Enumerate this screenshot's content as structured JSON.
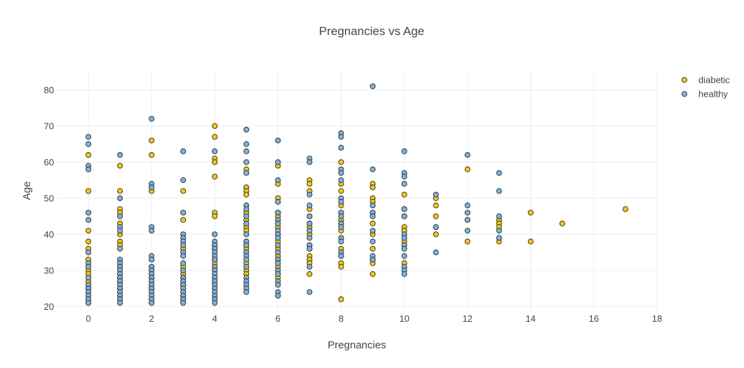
{
  "chart_data": {
    "type": "scatter",
    "title": "Pregnancies vs Age",
    "xlabel": "Pregnancies",
    "ylabel": "Age",
    "xlim": [
      -1,
      18
    ],
    "ylim": [
      18.5,
      85.5
    ],
    "xticks": [
      0,
      2,
      4,
      6,
      8,
      10,
      12,
      14,
      16,
      18
    ],
    "yticks": [
      20,
      30,
      40,
      50,
      60,
      70,
      80
    ],
    "grid": true,
    "legend_position": "top-right",
    "series": [
      {
        "name": "diabetic",
        "color": "#f2c811",
        "points": [
          [
            0,
            62
          ],
          [
            0,
            52
          ],
          [
            0,
            41
          ],
          [
            0,
            38
          ],
          [
            0,
            36
          ],
          [
            0,
            33
          ],
          [
            0,
            30
          ],
          [
            0,
            29
          ],
          [
            0,
            27
          ],
          [
            0,
            25
          ],
          [
            0,
            24
          ],
          [
            0,
            22
          ],
          [
            0,
            21
          ],
          [
            1,
            59
          ],
          [
            1,
            52
          ],
          [
            1,
            47
          ],
          [
            1,
            46
          ],
          [
            1,
            43
          ],
          [
            1,
            40
          ],
          [
            1,
            38
          ],
          [
            1,
            37
          ],
          [
            1,
            31
          ],
          [
            1,
            28
          ],
          [
            1,
            27
          ],
          [
            1,
            25
          ],
          [
            1,
            22
          ],
          [
            1,
            21
          ],
          [
            2,
            66
          ],
          [
            2,
            62
          ],
          [
            2,
            52
          ],
          [
            2,
            31
          ],
          [
            2,
            28
          ],
          [
            2,
            25
          ],
          [
            2,
            22
          ],
          [
            2,
            21
          ],
          [
            3,
            52
          ],
          [
            3,
            44
          ],
          [
            3,
            36
          ],
          [
            3,
            31
          ],
          [
            3,
            29
          ],
          [
            3,
            28
          ],
          [
            3,
            27
          ],
          [
            3,
            26
          ],
          [
            3,
            25
          ],
          [
            3,
            23
          ],
          [
            3,
            22
          ],
          [
            3,
            21
          ],
          [
            4,
            70
          ],
          [
            4,
            67
          ],
          [
            4,
            61
          ],
          [
            4,
            60
          ],
          [
            4,
            56
          ],
          [
            4,
            46
          ],
          [
            4,
            45
          ],
          [
            4,
            37
          ],
          [
            4,
            36
          ],
          [
            4,
            33
          ],
          [
            4,
            32
          ],
          [
            4,
            31
          ],
          [
            4,
            30
          ],
          [
            4,
            28
          ],
          [
            4,
            27
          ],
          [
            4,
            25
          ],
          [
            4,
            22
          ],
          [
            5,
            58
          ],
          [
            5,
            53
          ],
          [
            5,
            52
          ],
          [
            5,
            51
          ],
          [
            5,
            46
          ],
          [
            5,
            44
          ],
          [
            5,
            42
          ],
          [
            5,
            41
          ],
          [
            5,
            38
          ],
          [
            5,
            37
          ],
          [
            5,
            36
          ],
          [
            5,
            32
          ],
          [
            5,
            30
          ],
          [
            5,
            29
          ],
          [
            6,
            59
          ],
          [
            6,
            54
          ],
          [
            6,
            50
          ],
          [
            6,
            46
          ],
          [
            6,
            45
          ],
          [
            6,
            42
          ],
          [
            6,
            40
          ],
          [
            6,
            38
          ],
          [
            6,
            36
          ],
          [
            6,
            34
          ],
          [
            6,
            31
          ],
          [
            6,
            29
          ],
          [
            6,
            28
          ],
          [
            7,
            55
          ],
          [
            7,
            54
          ],
          [
            7,
            52
          ],
          [
            7,
            47
          ],
          [
            7,
            45
          ],
          [
            7,
            43
          ],
          [
            7,
            42
          ],
          [
            7,
            40
          ],
          [
            7,
            37
          ],
          [
            7,
            36
          ],
          [
            7,
            34
          ],
          [
            7,
            33
          ],
          [
            7,
            32
          ],
          [
            7,
            29
          ],
          [
            8,
            60
          ],
          [
            8,
            54
          ],
          [
            8,
            52
          ],
          [
            8,
            48
          ],
          [
            8,
            46
          ],
          [
            8,
            44
          ],
          [
            8,
            43
          ],
          [
            8,
            41
          ],
          [
            8,
            39
          ],
          [
            8,
            36
          ],
          [
            8,
            34
          ],
          [
            8,
            32
          ],
          [
            8,
            31
          ],
          [
            8,
            22
          ],
          [
            9,
            54
          ],
          [
            9,
            53
          ],
          [
            9,
            50
          ],
          [
            9,
            49
          ],
          [
            9,
            46
          ],
          [
            9,
            43
          ],
          [
            9,
            40
          ],
          [
            9,
            36
          ],
          [
            9,
            33
          ],
          [
            9,
            32
          ],
          [
            9,
            29
          ],
          [
            10,
            51
          ],
          [
            10,
            47
          ],
          [
            10,
            45
          ],
          [
            10,
            42
          ],
          [
            10,
            41
          ],
          [
            10,
            38
          ],
          [
            10,
            32
          ],
          [
            11,
            50
          ],
          [
            11,
            48
          ],
          [
            11,
            45
          ],
          [
            11,
            42
          ],
          [
            11,
            40
          ],
          [
            12,
            58
          ],
          [
            12,
            44
          ],
          [
            12,
            38
          ],
          [
            13,
            44
          ],
          [
            13,
            43
          ],
          [
            13,
            42
          ],
          [
            13,
            38
          ],
          [
            14,
            46
          ],
          [
            14,
            38
          ],
          [
            15,
            43
          ],
          [
            17,
            47
          ]
        ]
      },
      {
        "name": "healthy",
        "color": "#7fb2d8",
        "points": [
          [
            0,
            67
          ],
          [
            0,
            65
          ],
          [
            0,
            59
          ],
          [
            0,
            58
          ],
          [
            0,
            46
          ],
          [
            0,
            44
          ],
          [
            0,
            35
          ],
          [
            0,
            32
          ],
          [
            0,
            31
          ],
          [
            0,
            28
          ],
          [
            0,
            26
          ],
          [
            0,
            25
          ],
          [
            0,
            24
          ],
          [
            0,
            23
          ],
          [
            0,
            22
          ],
          [
            0,
            21
          ],
          [
            1,
            62
          ],
          [
            1,
            50
          ],
          [
            1,
            45
          ],
          [
            1,
            42
          ],
          [
            1,
            41
          ],
          [
            1,
            36
          ],
          [
            1,
            33
          ],
          [
            1,
            32
          ],
          [
            1,
            31
          ],
          [
            1,
            30
          ],
          [
            1,
            29
          ],
          [
            1,
            28
          ],
          [
            1,
            27
          ],
          [
            1,
            26
          ],
          [
            1,
            25
          ],
          [
            1,
            24
          ],
          [
            1,
            23
          ],
          [
            1,
            22
          ],
          [
            1,
            21
          ],
          [
            2,
            72
          ],
          [
            2,
            54
          ],
          [
            2,
            53
          ],
          [
            2,
            42
          ],
          [
            2,
            41
          ],
          [
            2,
            34
          ],
          [
            2,
            33
          ],
          [
            2,
            31
          ],
          [
            2,
            30
          ],
          [
            2,
            29
          ],
          [
            2,
            28
          ],
          [
            2,
            27
          ],
          [
            2,
            26
          ],
          [
            2,
            25
          ],
          [
            2,
            24
          ],
          [
            2,
            23
          ],
          [
            2,
            22
          ],
          [
            2,
            21
          ],
          [
            3,
            63
          ],
          [
            3,
            55
          ],
          [
            3,
            46
          ],
          [
            3,
            40
          ],
          [
            3,
            39
          ],
          [
            3,
            38
          ],
          [
            3,
            37
          ],
          [
            3,
            35
          ],
          [
            3,
            34
          ],
          [
            3,
            32
          ],
          [
            3,
            30
          ],
          [
            3,
            28
          ],
          [
            3,
            27
          ],
          [
            3,
            26
          ],
          [
            3,
            25
          ],
          [
            3,
            24
          ],
          [
            3,
            23
          ],
          [
            3,
            22
          ],
          [
            3,
            21
          ],
          [
            4,
            63
          ],
          [
            4,
            40
          ],
          [
            4,
            38
          ],
          [
            4,
            37
          ],
          [
            4,
            36
          ],
          [
            4,
            35
          ],
          [
            4,
            34
          ],
          [
            4,
            33
          ],
          [
            4,
            31
          ],
          [
            4,
            30
          ],
          [
            4,
            29
          ],
          [
            4,
            28
          ],
          [
            4,
            27
          ],
          [
            4,
            26
          ],
          [
            4,
            25
          ],
          [
            4,
            24
          ],
          [
            4,
            23
          ],
          [
            4,
            22
          ],
          [
            4,
            21
          ],
          [
            5,
            69
          ],
          [
            5,
            65
          ],
          [
            5,
            63
          ],
          [
            5,
            60
          ],
          [
            5,
            57
          ],
          [
            5,
            48
          ],
          [
            5,
            47
          ],
          [
            5,
            45
          ],
          [
            5,
            43
          ],
          [
            5,
            40
          ],
          [
            5,
            38
          ],
          [
            5,
            37
          ],
          [
            5,
            35
          ],
          [
            5,
            34
          ],
          [
            5,
            33
          ],
          [
            5,
            31
          ],
          [
            5,
            28
          ],
          [
            5,
            27
          ],
          [
            5,
            26
          ],
          [
            5,
            25
          ],
          [
            5,
            24
          ],
          [
            6,
            66
          ],
          [
            6,
            60
          ],
          [
            6,
            55
          ],
          [
            6,
            49
          ],
          [
            6,
            46
          ],
          [
            6,
            44
          ],
          [
            6,
            43
          ],
          [
            6,
            41
          ],
          [
            6,
            40
          ],
          [
            6,
            39
          ],
          [
            6,
            37
          ],
          [
            6,
            35
          ],
          [
            6,
            33
          ],
          [
            6,
            32
          ],
          [
            6,
            30
          ],
          [
            6,
            29
          ],
          [
            6,
            27
          ],
          [
            6,
            26
          ],
          [
            6,
            24
          ],
          [
            6,
            23
          ],
          [
            7,
            61
          ],
          [
            7,
            60
          ],
          [
            7,
            51
          ],
          [
            7,
            48
          ],
          [
            7,
            45
          ],
          [
            7,
            43
          ],
          [
            7,
            41
          ],
          [
            7,
            39
          ],
          [
            7,
            37
          ],
          [
            7,
            36
          ],
          [
            7,
            31
          ],
          [
            7,
            24
          ],
          [
            8,
            68
          ],
          [
            8,
            67
          ],
          [
            8,
            64
          ],
          [
            8,
            58
          ],
          [
            8,
            57
          ],
          [
            8,
            55
          ],
          [
            8,
            50
          ],
          [
            8,
            49
          ],
          [
            8,
            46
          ],
          [
            8,
            45
          ],
          [
            8,
            43
          ],
          [
            8,
            42
          ],
          [
            8,
            39
          ],
          [
            8,
            38
          ],
          [
            8,
            35
          ],
          [
            8,
            34
          ],
          [
            9,
            81
          ],
          [
            9,
            58
          ],
          [
            9,
            48
          ],
          [
            9,
            46
          ],
          [
            9,
            45
          ],
          [
            9,
            41
          ],
          [
            9,
            38
          ],
          [
            9,
            34
          ],
          [
            9,
            33
          ],
          [
            10,
            63
          ],
          [
            10,
            57
          ],
          [
            10,
            56
          ],
          [
            10,
            54
          ],
          [
            10,
            47
          ],
          [
            10,
            45
          ],
          [
            10,
            40
          ],
          [
            10,
            39
          ],
          [
            10,
            37
          ],
          [
            10,
            36
          ],
          [
            10,
            34
          ],
          [
            10,
            31
          ],
          [
            10,
            30
          ],
          [
            10,
            29
          ],
          [
            11,
            51
          ],
          [
            11,
            42
          ],
          [
            11,
            35
          ],
          [
            12,
            62
          ],
          [
            12,
            48
          ],
          [
            12,
            46
          ],
          [
            12,
            44
          ],
          [
            12,
            41
          ],
          [
            13,
            57
          ],
          [
            13,
            52
          ],
          [
            13,
            45
          ],
          [
            13,
            41
          ],
          [
            13,
            39
          ]
        ]
      }
    ]
  }
}
